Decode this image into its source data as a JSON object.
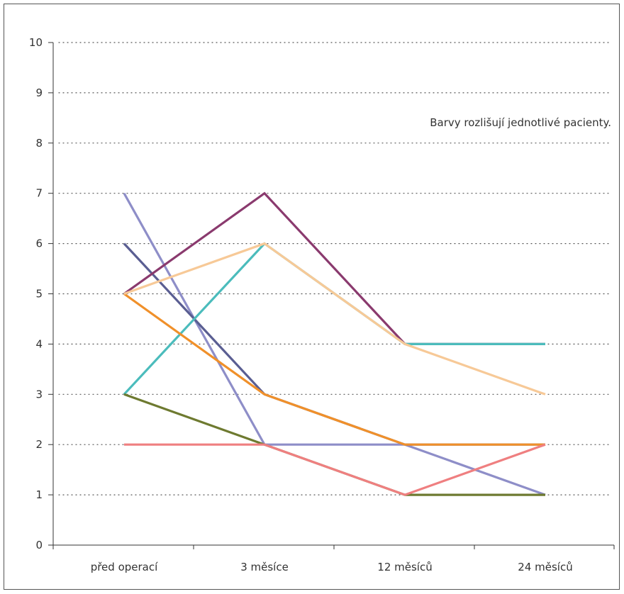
{
  "chart_data": {
    "type": "line",
    "categories": [
      "před operací",
      "3 měsíce",
      "12 měsíců",
      "24 měsíců"
    ],
    "ylim": [
      0,
      10
    ],
    "yticks": [
      "0",
      "1",
      "2",
      "3",
      "4",
      "5",
      "6",
      "7",
      "8",
      "9",
      "10"
    ],
    "grid": "horizontal dotted",
    "annotation": "Barvy rozlišují jednotlivé pacienty.",
    "series": [
      {
        "color": "#8e8ec8",
        "values": [
          7,
          2,
          2,
          1
        ]
      },
      {
        "color": "#5a5e92",
        "values": [
          6,
          3,
          2,
          2
        ]
      },
      {
        "color": "#8a3a6e",
        "values": [
          5,
          7,
          4,
          4
        ]
      },
      {
        "color": "#4bbcbc",
        "values": [
          3,
          6,
          4,
          4
        ]
      },
      {
        "color": "#f0902a",
        "values": [
          5,
          3,
          2,
          2
        ]
      },
      {
        "color": "#6e7a30",
        "values": [
          3,
          2,
          1,
          1
        ]
      },
      {
        "color": "#f7c997",
        "values": [
          5,
          6,
          4,
          3
        ]
      },
      {
        "color": "#ef7f80",
        "values": [
          2,
          2,
          1,
          2
        ]
      }
    ]
  }
}
